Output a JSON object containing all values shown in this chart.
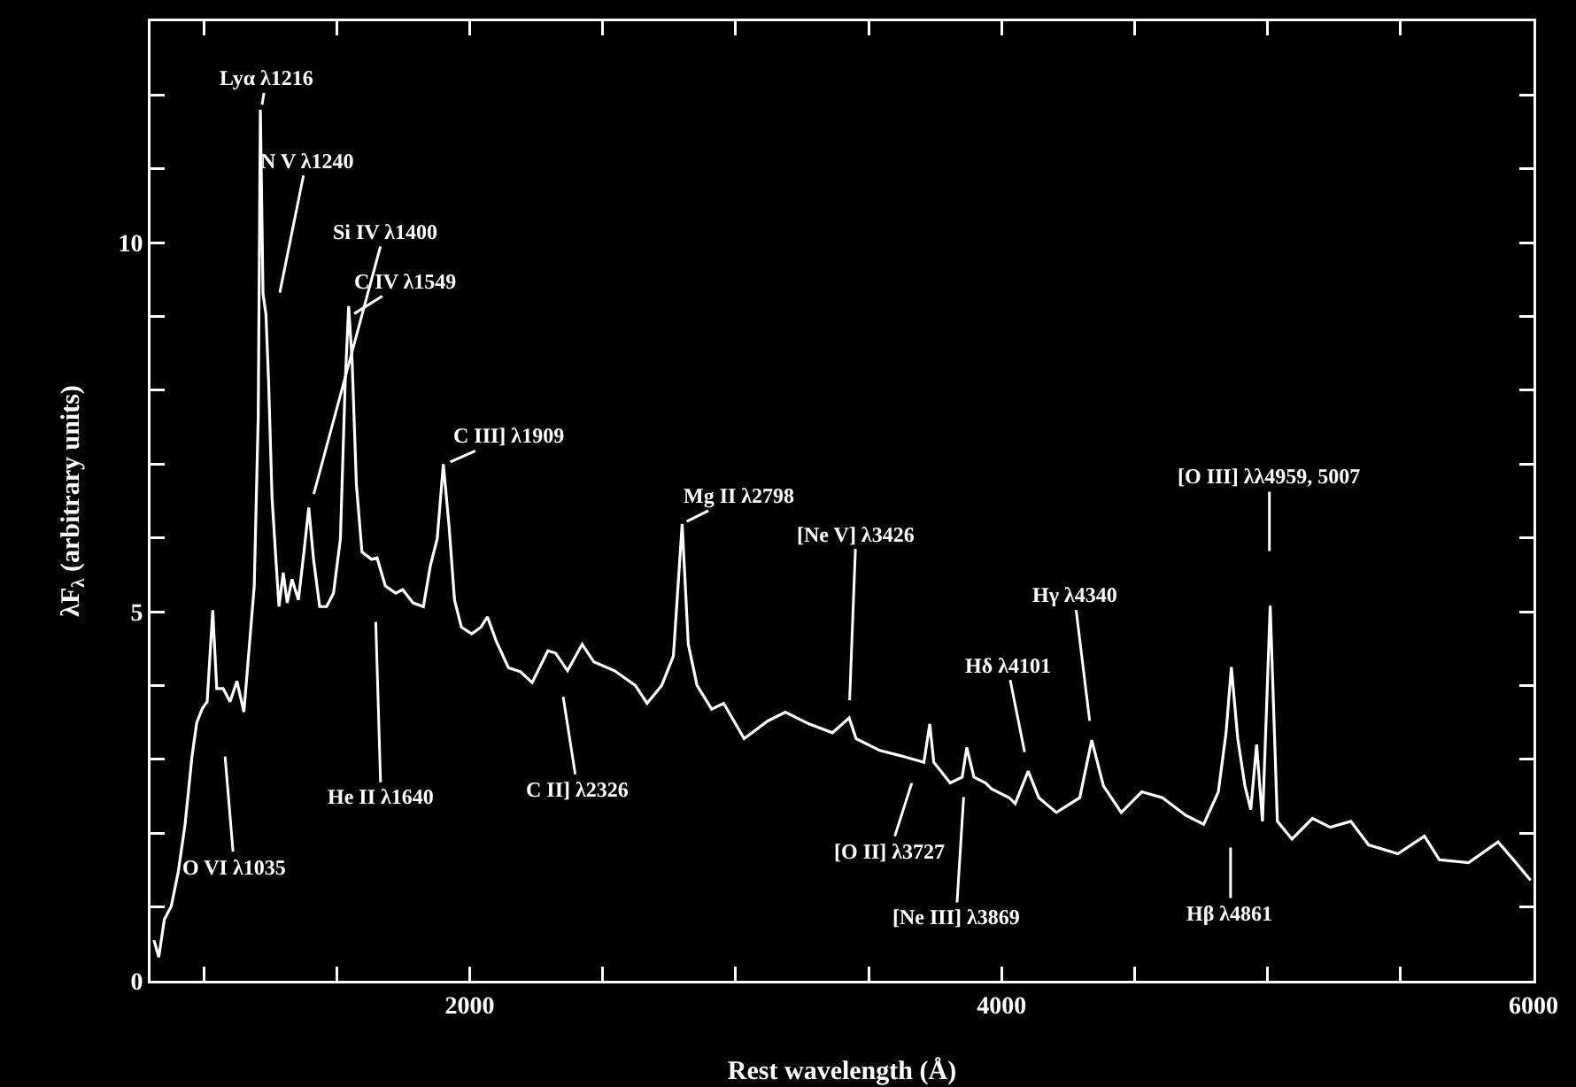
{
  "chart_data": {
    "type": "line",
    "xlabel": "Rest wavelength (Å)",
    "ylabel": "λF$_{λ}$ (arbitrary units)",
    "xlim": [
      800,
      6000
    ],
    "ylim": [
      0,
      13
    ],
    "xticks": [
      {
        "value": 1000,
        "label": null
      },
      {
        "value": 1500,
        "label": null
      },
      2000,
      {
        "value": 2500,
        "label": null
      },
      {
        "value": 3000,
        "label": null
      },
      {
        "value": 3500,
        "label": null
      },
      4000,
      {
        "value": 4500,
        "label": null
      },
      {
        "value": 5000,
        "label": null
      },
      {
        "value": 5500,
        "label": null
      },
      6000
    ],
    "yticks": [
      0,
      {
        "value": 1,
        "label": null
      },
      {
        "value": 2,
        "label": null
      },
      {
        "value": 3,
        "label": null
      },
      {
        "value": 4,
        "label": null
      },
      5,
      {
        "value": 6,
        "label": null
      },
      {
        "value": 7,
        "label": null
      },
      {
        "value": 8,
        "label": null
      },
      {
        "value": 9,
        "label": null
      },
      10,
      {
        "value": 11,
        "label": null
      },
      {
        "value": 12,
        "label": null
      }
    ],
    "grid": false,
    "series": [
      {
        "color": "#ffffff",
        "x": [
          813,
          831,
          852,
          878,
          904,
          930,
          956,
          974,
          995,
          1013,
          1034,
          1049,
          1073,
          1099,
          1125,
          1151,
          1169,
          1190,
          1205,
          1213,
          1223,
          1234,
          1244,
          1257,
          1273,
          1283,
          1299,
          1314,
          1332,
          1356,
          1377,
          1395,
          1413,
          1436,
          1462,
          1488,
          1514,
          1532,
          1545,
          1558,
          1574,
          1595,
          1631,
          1652,
          1683,
          1722,
          1748,
          1787,
          1826,
          1852,
          1878,
          1901,
          1922,
          1943,
          1969,
          2008,
          2042,
          2067,
          2099,
          2146,
          2190,
          2235,
          2294,
          2323,
          2368,
          2423,
          2467,
          2545,
          2623,
          2667,
          2722,
          2766,
          2799,
          2822,
          2855,
          2910,
          2955,
          3032,
          3121,
          3187,
          3276,
          3364,
          3427,
          3453,
          3542,
          3630,
          3708,
          3730,
          3745,
          3807,
          3852,
          3869,
          3896,
          3940,
          3962,
          4029,
          4051,
          4100,
          4140,
          4206,
          4294,
          4339,
          4383,
          4450,
          4527,
          4605,
          4693,
          4760,
          4815,
          4844,
          4864,
          4888,
          4915,
          4937,
          4959,
          4981,
          5010,
          5037,
          5092,
          5169,
          5236,
          5313,
          5380,
          5490,
          5590,
          5646,
          5756,
          5867,
          5934,
          5989
        ],
        "values": [
          0.55,
          0.32,
          0.83,
          1.01,
          1.47,
          2.12,
          3.04,
          3.5,
          3.69,
          3.78,
          5.02,
          3.96,
          3.96,
          3.78,
          4.06,
          3.64,
          4.42,
          5.35,
          7.65,
          11.8,
          9.31,
          9.03,
          8.11,
          6.54,
          5.62,
          5.07,
          5.53,
          5.12,
          5.44,
          5.16,
          5.81,
          6.41,
          5.71,
          5.07,
          5.07,
          5.25,
          5.99,
          8.11,
          9.14,
          8.39,
          6.73,
          5.81,
          5.71,
          5.73,
          5.35,
          5.25,
          5.3,
          5.12,
          5.07,
          5.62,
          5.99,
          7.0,
          6.18,
          5.16,
          4.79,
          4.7,
          4.79,
          4.93,
          4.61,
          4.24,
          4.19,
          4.04,
          4.47,
          4.44,
          4.2,
          4.56,
          4.32,
          4.2,
          4.0,
          3.76,
          4.0,
          4.4,
          6.19,
          4.56,
          4.0,
          3.68,
          3.76,
          3.28,
          3.52,
          3.64,
          3.48,
          3.36,
          3.56,
          3.28,
          3.12,
          3.04,
          2.96,
          3.48,
          2.96,
          2.68,
          2.76,
          3.16,
          2.76,
          2.68,
          2.6,
          2.48,
          2.4,
          2.84,
          2.48,
          2.28,
          2.48,
          3.26,
          2.64,
          2.28,
          2.56,
          2.48,
          2.24,
          2.12,
          2.56,
          3.36,
          4.25,
          3.28,
          2.64,
          2.32,
          3.2,
          2.16,
          5.08,
          2.16,
          1.92,
          2.2,
          2.08,
          2.16,
          1.84,
          1.72,
          1.96,
          1.64,
          1.6,
          1.88,
          1.6,
          1.36
        ]
      }
    ],
    "annotations": [
      {
        "text": "Lyα λ1216",
        "x": 1216,
        "y": 11.8
      },
      {
        "text": "N V λ1240",
        "x": 1240,
        "y": 8.5
      },
      {
        "text": "Si IV λ1400",
        "x": 1400,
        "y": 6.41
      },
      {
        "text": "C IV λ1549",
        "x": 1549,
        "y": 9.0
      },
      {
        "text": "C III] λ1909",
        "x": 1909,
        "y": 7.0
      },
      {
        "text": "O VI λ1035",
        "x": 1035,
        "y": 5.0
      },
      {
        "text": "He II λ1640",
        "x": 1640,
        "y": 5.7
      },
      {
        "text": "C II] λ2326",
        "x": 2326,
        "y": 4.44
      },
      {
        "text": "Mg II λ2798",
        "x": 2798,
        "y": 6.19
      },
      {
        "text": "[Ne V] λ3426",
        "x": 3426,
        "y": 3.56
      },
      {
        "text": "[O II] λ3727",
        "x": 3727,
        "y": 3.41
      },
      {
        "text": "[Ne III] λ3869",
        "x": 3869,
        "y": 3.16
      },
      {
        "text": "Hδ λ4101",
        "x": 4101,
        "y": 2.84
      },
      {
        "text": "Hγ λ4340",
        "x": 4340,
        "y": 3.26
      },
      {
        "text": "Hβ λ4861",
        "x": 4861,
        "y": 4.25
      },
      {
        "text": "[O III] λλ4959, 5007",
        "x": 5007,
        "y": 5.08
      }
    ]
  }
}
